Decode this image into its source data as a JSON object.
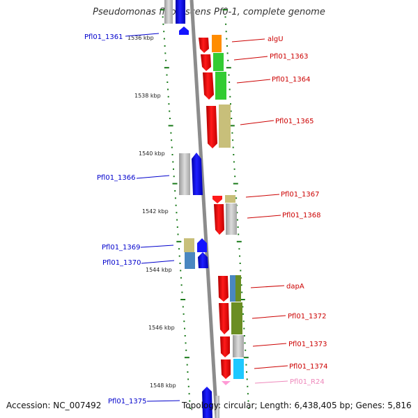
{
  "title": "Pseudomonas fluorescens Pf0-1, complete genome",
  "footer": {
    "accession": "Accession: NC_007492",
    "topology": "Topology: circular; Length: 6,438,405 bp; Genes: 5,816"
  },
  "colors": {
    "backbone": "#8c8c8c",
    "tick": "#1a7a1a",
    "forward_strand": "#0000ff",
    "reverse_strand": "#ff0000",
    "rna": "#ff9ad5",
    "label_forward": "#0000cc",
    "label_reverse": "#cc0000",
    "label_rna": "#ee88bb"
  },
  "scale": {
    "unit": "kbp",
    "ticks": [
      "1536 kbp",
      "1538 kbp",
      "1540 kbp",
      "1542 kbp",
      "1544 kbp",
      "1546 kbp",
      "1548 kbp"
    ]
  },
  "genes": [
    {
      "name": "Pfl01_1361",
      "kind": "left"
    },
    {
      "name": "algU",
      "kind": "right"
    },
    {
      "name": "Pfl01_1363",
      "kind": "right"
    },
    {
      "name": "Pfl01_1364",
      "kind": "right"
    },
    {
      "name": "Pfl01_1365",
      "kind": "right"
    },
    {
      "name": "Pfl01_1366",
      "kind": "left"
    },
    {
      "name": "Pfl01_1367",
      "kind": "right"
    },
    {
      "name": "Pfl01_1368",
      "kind": "right"
    },
    {
      "name": "Pfl01_1369",
      "kind": "left"
    },
    {
      "name": "Pfl01_1370",
      "kind": "left"
    },
    {
      "name": "dapA",
      "kind": "right"
    },
    {
      "name": "Pfl01_1372",
      "kind": "right"
    },
    {
      "name": "Pfl01_1373",
      "kind": "right"
    },
    {
      "name": "Pfl01_1374",
      "kind": "right"
    },
    {
      "name": "Pfl01_R24",
      "kind": "rna"
    },
    {
      "name": "Pfl01_1375",
      "kind": "left"
    }
  ]
}
